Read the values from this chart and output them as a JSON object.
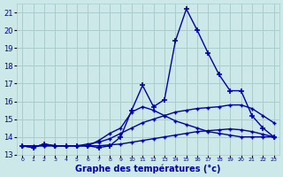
{
  "title": "",
  "xlabel": "Graphe des températures (°c)",
  "ylabel": "",
  "bg_color": "#cce8e8",
  "grid_color": "#aacccc",
  "line_color": "#0000aa",
  "xlim": [
    -0.5,
    23.5
  ],
  "ylim": [
    13.0,
    21.5
  ],
  "yticks": [
    13,
    14,
    15,
    16,
    17,
    18,
    19,
    20,
    21
  ],
  "xticks": [
    0,
    1,
    2,
    3,
    4,
    5,
    6,
    7,
    8,
    9,
    10,
    11,
    12,
    13,
    14,
    15,
    16,
    17,
    18,
    19,
    20,
    21,
    22,
    23
  ],
  "hours": [
    0,
    1,
    2,
    3,
    4,
    5,
    6,
    7,
    8,
    9,
    10,
    11,
    12,
    13,
    14,
    15,
    16,
    17,
    18,
    19,
    20,
    21,
    22,
    23
  ],
  "line1_volatile": [
    13.5,
    13.4,
    13.6,
    13.5,
    13.5,
    13.5,
    13.5,
    13.4,
    13.5,
    14.0,
    15.5,
    16.9,
    15.7,
    16.1,
    19.4,
    21.2,
    20.0,
    18.7,
    17.5,
    16.6,
    16.6,
    15.2,
    14.5,
    14.0
  ],
  "line2_medium": [
    13.5,
    13.4,
    13.6,
    13.5,
    13.5,
    13.5,
    13.5,
    13.8,
    14.2,
    14.5,
    15.4,
    15.7,
    15.5,
    15.2,
    14.9,
    14.7,
    14.5,
    14.3,
    14.2,
    14.1,
    14.0,
    14.0,
    14.0,
    14.0
  ],
  "line3_smooth_high": [
    13.5,
    13.5,
    13.5,
    13.5,
    13.5,
    13.5,
    13.6,
    13.7,
    13.9,
    14.2,
    14.5,
    14.8,
    15.0,
    15.2,
    15.4,
    15.5,
    15.6,
    15.65,
    15.7,
    15.8,
    15.8,
    15.6,
    15.2,
    14.8
  ],
  "line4_flat": [
    13.5,
    13.5,
    13.5,
    13.5,
    13.5,
    13.5,
    13.5,
    13.5,
    13.55,
    13.6,
    13.7,
    13.8,
    13.9,
    14.0,
    14.1,
    14.2,
    14.3,
    14.35,
    14.4,
    14.45,
    14.4,
    14.3,
    14.15,
    14.0
  ]
}
